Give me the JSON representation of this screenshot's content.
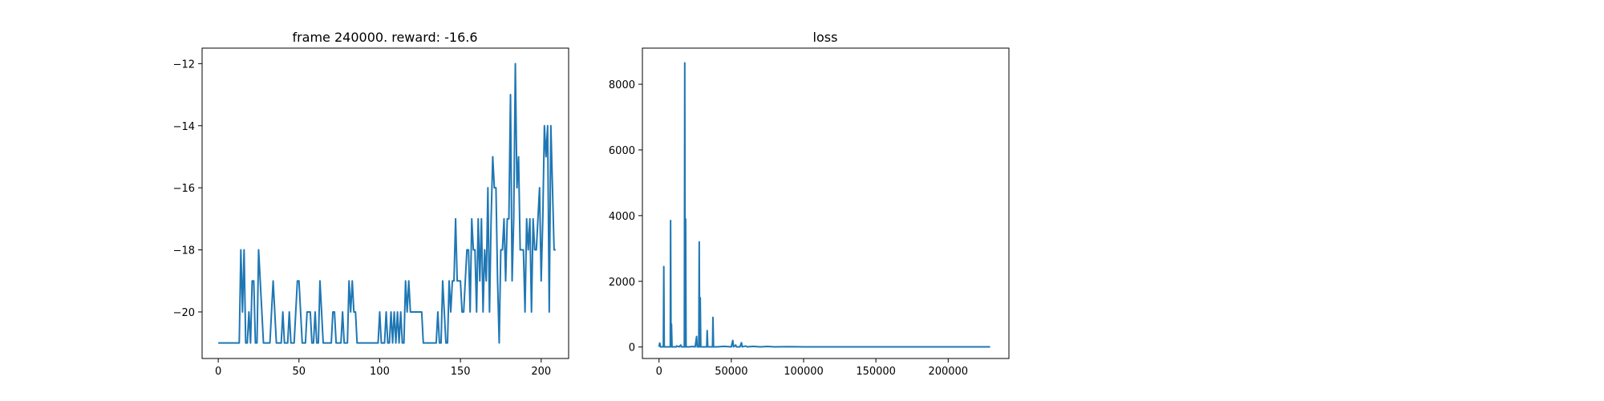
{
  "colors": {
    "series": "#1f77b4",
    "axes": "#000000",
    "background": "#ffffff"
  },
  "chart_data": [
    {
      "type": "line",
      "title": "frame 240000. reward: -16.6",
      "xlabel": "",
      "ylabel": "",
      "xlim": [
        -10,
        217
      ],
      "ylim": [
        -21.5,
        -11.5
      ],
      "xticks": [
        0,
        50,
        100,
        150,
        200
      ],
      "yticks": [
        -20,
        -18,
        -16,
        -14,
        -12
      ],
      "ytick_labels": [
        "−20",
        "−18",
        "−16",
        "−14",
        "−12"
      ],
      "grid": false,
      "series": [
        {
          "values": [
            -21,
            -21,
            -21,
            -21,
            -21,
            -21,
            -21,
            -21,
            -21,
            -21,
            -21,
            -21,
            -21,
            -21,
            -18,
            -20,
            -18,
            -21,
            -21,
            -20,
            -21,
            -19,
            -19,
            -21,
            -21,
            -18,
            -19,
            -20,
            -21,
            -21,
            -21,
            -21,
            -21,
            -20,
            -19,
            -20,
            -21,
            -21,
            -21,
            -21,
            -20,
            -21,
            -21,
            -21,
            -20,
            -21,
            -21,
            -21,
            -20,
            -19,
            -19,
            -20,
            -21,
            -21,
            -21,
            -20,
            -20,
            -20,
            -21,
            -21,
            -20,
            -21,
            -21,
            -19,
            -20,
            -21,
            -21,
            -21,
            -21,
            -21,
            -21,
            -20,
            -20,
            -21,
            -21,
            -21,
            -21,
            -20,
            -21,
            -21,
            -21,
            -19,
            -20,
            -19,
            -20,
            -20,
            -21,
            -21,
            -21,
            -21,
            -21,
            -21,
            -21,
            -21,
            -21,
            -21,
            -21,
            -21,
            -21,
            -21,
            -20,
            -21,
            -21,
            -21,
            -20,
            -21,
            -21,
            -20,
            -21,
            -20,
            -21,
            -20,
            -21,
            -20,
            -21,
            -21,
            -19,
            -20,
            -19,
            -20,
            -20,
            -20,
            -20,
            -20,
            -20,
            -20,
            -20,
            -21,
            -21,
            -21,
            -21,
            -21,
            -21,
            -21,
            -21,
            -21,
            -20,
            -21,
            -21,
            -19,
            -20,
            -21,
            -21,
            -19,
            -20,
            -19,
            -19,
            -17,
            -19,
            -19,
            -19,
            -20,
            -20,
            -19,
            -18,
            -18,
            -20,
            -17,
            -18,
            -18,
            -20,
            -17,
            -19,
            -17,
            -20,
            -18,
            -19,
            -16,
            -20,
            -17,
            -15,
            -16,
            -16,
            -19,
            -21,
            -18,
            -18,
            -17,
            -19,
            -17,
            -17,
            -13,
            -19,
            -17,
            -12,
            -16,
            -15,
            -18,
            -18,
            -18,
            -20,
            -17,
            -18,
            -17,
            -20,
            -17,
            -18,
            -18,
            -17,
            -16,
            -19,
            -17,
            -14,
            -15,
            -14,
            -20,
            -14,
            -16,
            -18,
            -18
          ]
        }
      ]
    },
    {
      "type": "line",
      "title": "loss",
      "xlabel": "",
      "ylabel": "",
      "xlim": [
        -11500,
        242000
      ],
      "ylim": [
        -350,
        9100
      ],
      "xticks": [
        0,
        50000,
        100000,
        150000,
        200000
      ],
      "yticks": [
        0,
        2000,
        4000,
        6000,
        8000
      ],
      "grid": false,
      "series": [
        {
          "points": [
            [
              0,
              5
            ],
            [
              500,
              120
            ],
            [
              1000,
              5
            ],
            [
              3000,
              5
            ],
            [
              3300,
              2450
            ],
            [
              3600,
              5
            ],
            [
              7800,
              5
            ],
            [
              8000,
              3850
            ],
            [
              8300,
              5
            ],
            [
              8600,
              700
            ],
            [
              9000,
              5
            ],
            [
              12000,
              5
            ],
            [
              12200,
              30
            ],
            [
              14000,
              5
            ],
            [
              15000,
              60
            ],
            [
              15500,
              5
            ],
            [
              17500,
              5
            ],
            [
              17800,
              8650
            ],
            [
              18100,
              5
            ],
            [
              18400,
              3900
            ],
            [
              18700,
              5
            ],
            [
              21000,
              5
            ],
            [
              23000,
              15
            ],
            [
              25000,
              5
            ],
            [
              26000,
              320
            ],
            [
              26400,
              5
            ],
            [
              27500,
              5
            ],
            [
              27800,
              3200
            ],
            [
              28100,
              5
            ],
            [
              28500,
              1500
            ],
            [
              28900,
              5
            ],
            [
              33000,
              5
            ],
            [
              33300,
              500
            ],
            [
              33700,
              5
            ],
            [
              37000,
              5
            ],
            [
              37300,
              900
            ],
            [
              37700,
              5
            ],
            [
              40000,
              5
            ],
            [
              45000,
              20
            ],
            [
              50000,
              5
            ],
            [
              51000,
              200
            ],
            [
              51500,
              5
            ],
            [
              53000,
              60
            ],
            [
              53500,
              5
            ],
            [
              56000,
              5
            ],
            [
              57000,
              130
            ],
            [
              57500,
              5
            ],
            [
              60000,
              30
            ],
            [
              61000,
              5
            ],
            [
              65000,
              20
            ],
            [
              70000,
              5
            ],
            [
              75000,
              15
            ],
            [
              80000,
              5
            ],
            [
              90000,
              10
            ],
            [
              100000,
              5
            ],
            [
              120000,
              5
            ],
            [
              150000,
              5
            ],
            [
              180000,
              5
            ],
            [
              200000,
              5
            ],
            [
              229000,
              5
            ]
          ]
        }
      ]
    }
  ]
}
